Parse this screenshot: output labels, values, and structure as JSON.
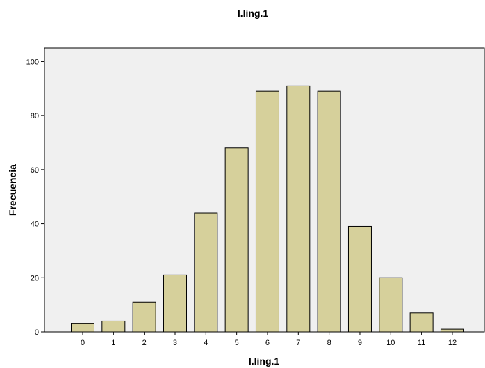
{
  "chart_data": {
    "type": "bar",
    "title": "I.ling.1",
    "xlabel": "I.ling.1",
    "ylabel": "Frecuencia",
    "categories": [
      "0",
      "1",
      "2",
      "3",
      "4",
      "5",
      "6",
      "7",
      "8",
      "9",
      "10",
      "11",
      "12"
    ],
    "values": [
      3,
      4,
      11,
      21,
      44,
      68,
      89,
      91,
      89,
      39,
      20,
      7,
      1
    ],
    "ylim": [
      0,
      105
    ],
    "yticks": [
      "0",
      "20",
      "40",
      "60",
      "80",
      "100"
    ],
    "grid": false,
    "legend": "none",
    "colors": {
      "bar_fill": "#d6d09b",
      "bar_stroke": "#000000",
      "plot_background": "#f0f0f0"
    }
  }
}
